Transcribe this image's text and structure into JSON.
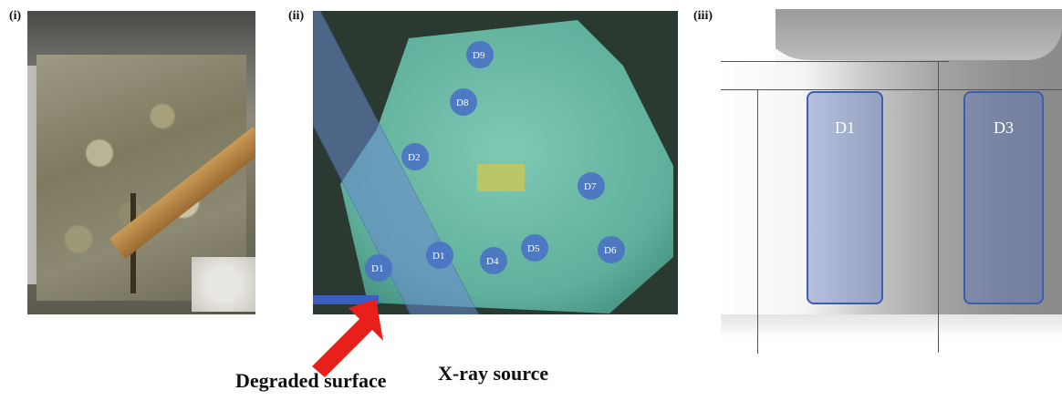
{
  "panels": {
    "i": {
      "label": "(i)"
    },
    "ii": {
      "label": "(ii)",
      "detectors": [
        "D1",
        "D1",
        "D2",
        "D4",
        "D5",
        "D6",
        "D7",
        "D8",
        "D9"
      ],
      "arrow_color": "#e8201c",
      "beam_color": "#6a8ad0"
    },
    "iii": {
      "label": "(iii)",
      "roi_left": "D1",
      "roi_right": "D3",
      "roi_color": "#3b5faa"
    }
  },
  "captions": {
    "degraded_surface": "Degraded surface",
    "xray_source": "X-ray source"
  }
}
